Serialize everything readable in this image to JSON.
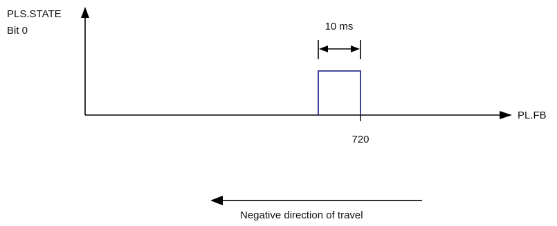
{
  "diagram": {
    "y_axis_label_line1": "PLS.STATE",
    "y_axis_label_line2": "Bit 0",
    "x_axis_label": "PL.FB",
    "tick_label": "720",
    "pulse_width_label": "10 ms",
    "direction_label": "Negative direction of travel"
  },
  "colors": {
    "axis": "#000000",
    "pulse": "#2b2f8f",
    "text": "#111111"
  }
}
